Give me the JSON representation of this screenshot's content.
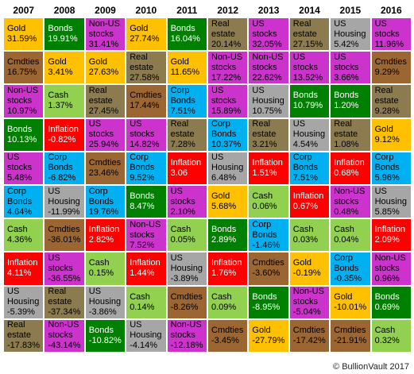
{
  "chart_data": {
    "type": "table",
    "years": [
      "2007",
      "2008",
      "2009",
      "2010",
      "2011",
      "2012",
      "2013",
      "2014",
      "2015",
      "2016"
    ],
    "columns": [
      [
        [
          "Gold",
          "31.59%"
        ],
        [
          "Cmdties",
          "16.75%"
        ],
        [
          "Non-US stocks",
          "10.97%"
        ],
        [
          "Bonds",
          "10.13%"
        ],
        [
          "US stocks",
          "5.48%"
        ],
        [
          "Corp Bonds",
          "4.64%"
        ],
        [
          "Cash",
          "4.36%"
        ],
        [
          "Inflation",
          "4.11%"
        ],
        [
          "US Housing",
          "-5.39%"
        ],
        [
          "Real estate",
          "-17.83%"
        ]
      ],
      [
        [
          "Bonds",
          "19.91%"
        ],
        [
          "Gold",
          "3.41%"
        ],
        [
          "Cash",
          "1.37%"
        ],
        [
          "Inflation",
          "-0.82%"
        ],
        [
          "Corp Bonds",
          "-6.82%"
        ],
        [
          "US Housing",
          "-11.99%"
        ],
        [
          "Cmdties",
          "-36.01%"
        ],
        [
          "US stocks",
          "-36.55%"
        ],
        [
          "Real estate",
          "-37.34%"
        ],
        [
          "Non-US stocks",
          "-43.14%"
        ]
      ],
      [
        [
          "Non-US stocks",
          "31.41%"
        ],
        [
          "Gold",
          "27.63%"
        ],
        [
          "Real estate",
          "27.45%"
        ],
        [
          "US stocks",
          "25.94%"
        ],
        [
          "Cmdties",
          "23.46%"
        ],
        [
          "Corp Bonds",
          "19.76%"
        ],
        [
          "Inflation",
          "2.82%"
        ],
        [
          "Cash",
          "0.15%"
        ],
        [
          "US Housing",
          "-3.86%"
        ],
        [
          "Bonds",
          "-10.82%"
        ]
      ],
      [
        [
          "Gold",
          "27.74%"
        ],
        [
          "Real estate",
          "27.58%"
        ],
        [
          "Cmdties",
          "17.44%"
        ],
        [
          "US stocks",
          "14.82%"
        ],
        [
          "Corp Bonds",
          "9.52%"
        ],
        [
          "Bonds",
          "8.47%"
        ],
        [
          "Non-US stocks",
          "7.52%"
        ],
        [
          "Inflation",
          "1.44%"
        ],
        [
          "Cash",
          "0.14%"
        ],
        [
          "US Housing",
          "-4.14%"
        ]
      ],
      [
        [
          "Bonds",
          "16.04%"
        ],
        [
          "Gold",
          "11.65%"
        ],
        [
          "Corp Bonds",
          "7.51%"
        ],
        [
          "Real estate",
          "7.28%"
        ],
        [
          "Inflation",
          "3.06"
        ],
        [
          "US stocks",
          "2.10%"
        ],
        [
          "Cash",
          "0.05%"
        ],
        [
          "US Housing",
          "-3.89%"
        ],
        [
          "Cmdties",
          "-8.26%"
        ],
        [
          "Non-US stocks",
          "-12.18%"
        ]
      ],
      [
        [
          "Real estate",
          "20.14%"
        ],
        [
          "Non-US stocks",
          "17.22%"
        ],
        [
          "US stocks",
          "15.89%"
        ],
        [
          "Corp Bonds",
          "10.37%"
        ],
        [
          "US Housing",
          "6.48%"
        ],
        [
          "Gold",
          "5.68%"
        ],
        [
          "Bonds",
          "2.89%"
        ],
        [
          "Inflation",
          "1.76%"
        ],
        [
          "Cash",
          "0.09%"
        ],
        [
          "Cmdties",
          "-3.45%"
        ]
      ],
      [
        [
          "US stocks",
          "32.05%"
        ],
        [
          "Non-US stocks",
          "22.62%"
        ],
        [
          "US Housing",
          "10.75%"
        ],
        [
          "Real estate",
          "3.21%"
        ],
        [
          "Inflation",
          "1.51%"
        ],
        [
          "Cash",
          "0.06%"
        ],
        [
          "Corp Bonds",
          "-1.46%"
        ],
        [
          "Cmdties",
          "-3.60%"
        ],
        [
          "Bonds",
          "-8.95%"
        ],
        [
          "Gold",
          "-27.79%"
        ]
      ],
      [
        [
          "Real estate",
          "27.15%"
        ],
        [
          "US stocks",
          "13.52%"
        ],
        [
          "Bonds",
          "10.79%"
        ],
        [
          "US Housing",
          "4.54%"
        ],
        [
          "Corp Bonds",
          "7.51%"
        ],
        [
          "Inflation",
          "0.67%"
        ],
        [
          "Cash",
          "0.03%"
        ],
        [
          "Gold",
          "-0.19%"
        ],
        [
          "Non-US stocks",
          "-5.04%"
        ],
        [
          "Cmdties",
          "-17.42%"
        ]
      ],
      [
        [
          "US Housing",
          "5.42%"
        ],
        [
          "US stocks",
          "3.66%"
        ],
        [
          "Bonds",
          "1.20%"
        ],
        [
          "Real estate",
          "1.08%"
        ],
        [
          "Inflation",
          "0.68%"
        ],
        [
          "Non-US stocks",
          "0.48%"
        ],
        [
          "Cash",
          "0.04%"
        ],
        [
          "Corp Bonds",
          "-0.35%"
        ],
        [
          "Gold",
          "-10.01%"
        ],
        [
          "Cmdties",
          "-21.91%"
        ]
      ],
      [
        [
          "US stocks",
          "11.96%"
        ],
        [
          "Cmdties",
          "9.29%"
        ],
        [
          "Real estate",
          "9.28%"
        ],
        [
          "Gold",
          "9.12%"
        ],
        [
          "Corp Bonds",
          "5.96%"
        ],
        [
          "US Housing",
          "5.85%"
        ],
        [
          "Inflation",
          "2.09%"
        ],
        [
          "Non-US stocks",
          "0.96%"
        ],
        [
          "Bonds",
          "0.69%"
        ],
        [
          "Cash",
          "0.32%"
        ]
      ]
    ],
    "colors": {
      "Gold": "#ffc000",
      "Bonds": "#008000",
      "Non-US stocks": "#cc33cc",
      "US stocks": "#cc33cc",
      "Real estate": "#8b7b4e",
      "Cmdties": "#9c6633",
      "Cash": "#92d050",
      "Inflation": "#ff0000",
      "Corp Bonds": "#00b0f0",
      "US Housing": "#a6a6a6"
    },
    "text_colors": {
      "Inflation": "#ffffff",
      "Bonds": "#ffffff"
    }
  },
  "credit": "© BullionVault 2017"
}
